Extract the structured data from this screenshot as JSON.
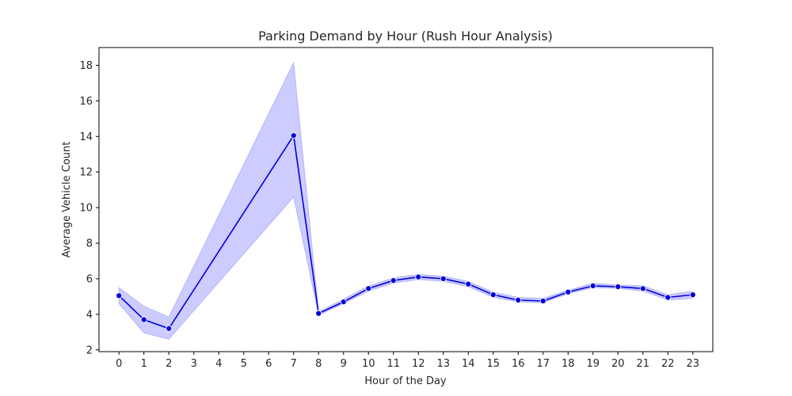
{
  "chart_data": {
    "type": "line",
    "title": "Parking Demand by Hour (Rush Hour Analysis)",
    "xlabel": "Hour of the Day",
    "ylabel": "Average Vehicle Count",
    "x": [
      0,
      1,
      2,
      7,
      8,
      9,
      10,
      11,
      12,
      13,
      14,
      15,
      16,
      17,
      18,
      19,
      20,
      21,
      22,
      23
    ],
    "x_ticks": [
      0,
      1,
      2,
      3,
      4,
      5,
      6,
      7,
      8,
      9,
      10,
      11,
      12,
      13,
      14,
      15,
      16,
      17,
      18,
      19,
      20,
      21,
      22,
      23
    ],
    "y_ticks": [
      2,
      4,
      6,
      8,
      10,
      12,
      14,
      16,
      18
    ],
    "xlim": [
      -0.8,
      23.8
    ],
    "ylim": [
      1.9,
      19.0
    ],
    "series": [
      {
        "values": [
          5.05,
          3.7,
          3.2,
          14.05,
          4.05,
          4.7,
          5.45,
          5.9,
          6.1,
          6.0,
          5.7,
          5.1,
          4.8,
          4.75,
          5.25,
          5.6,
          5.55,
          5.45,
          4.95,
          5.1
        ],
        "ci_lower": [
          4.6,
          2.95,
          2.6,
          10.6,
          3.95,
          4.6,
          5.3,
          5.75,
          5.95,
          5.85,
          5.55,
          4.95,
          4.7,
          4.65,
          5.15,
          5.5,
          5.45,
          5.3,
          4.8,
          4.9
        ],
        "ci_upper": [
          5.5,
          4.45,
          3.85,
          18.15,
          4.15,
          4.85,
          5.6,
          6.05,
          6.25,
          6.15,
          5.85,
          5.25,
          4.95,
          4.9,
          5.35,
          5.75,
          5.65,
          5.6,
          5.1,
          5.3
        ],
        "color": "#0000e0",
        "band_color": "#0000ff"
      }
    ],
    "grid": false,
    "legend": "none"
  }
}
